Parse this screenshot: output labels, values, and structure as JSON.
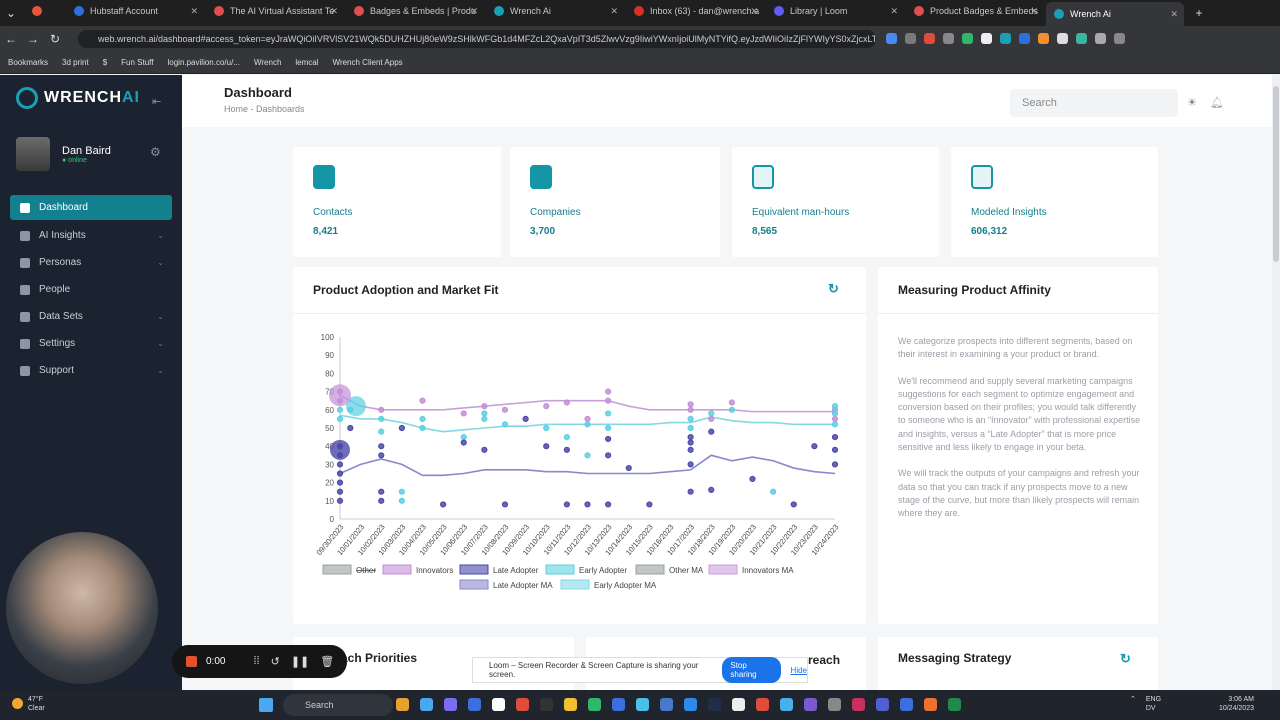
{
  "browser": {
    "tabs": [
      {
        "label": "",
        "color": "#e8553d"
      },
      {
        "label": "Hubstaff Account",
        "color": "#2f6fdd"
      },
      {
        "label": "The AI Virtual Assistant Te",
        "color": "#e14e4e"
      },
      {
        "label": "Badges & Embeds | Produ",
        "color": "#e14e4e"
      },
      {
        "label": "Wrench Ai",
        "color": "#1aa0b4"
      },
      {
        "label": "Inbox (63) - dan@wrench.a",
        "color": "#d93025"
      },
      {
        "label": "Library | Loom",
        "color": "#625df5"
      },
      {
        "label": "Product Badges & Embeds",
        "color": "#e14e4e"
      },
      {
        "label": "Wrench Ai",
        "color": "#1aa0b4"
      }
    ],
    "url": "web.wrench.ai/dashboard#access_token=eyJraWQiOiIVRVlSV21WQk5DUHZHUj80eW9zSHlkWFGb1d4MFZcL2QxaVpIT3d5ZlwvVzg9IiwiYWxnIjoiUlMyNTYifQ.eyJzdWIiOiIzZjFlYWIyYS0xZjcxLT",
    "bookmarks": [
      "Bookmarks",
      "3d print",
      "$",
      "Fun Stuff",
      "login.pavilion.co/u/...",
      "Wrench",
      "lemcal",
      "Wrench Client Apps"
    ],
    "ext_colors": [
      "#4a8af4",
      "#7a7a7a",
      "#e04b3c",
      "#888888",
      "#2fb86b",
      "#eeeeee",
      "#1aa0b4",
      "#2f6fdd",
      "#f09030",
      "#dddddd",
      "#3cb4a0",
      "#aaaaaa",
      "#888888"
    ]
  },
  "app": {
    "logo_main": "WRENCH",
    "logo_ai": "AI",
    "user": {
      "name": "Dan Baird",
      "status": "● online"
    },
    "menu": [
      {
        "label": "Dashboard"
      },
      {
        "label": "AI Insights"
      },
      {
        "label": "Personas"
      },
      {
        "label": "People"
      },
      {
        "label": "Data Sets"
      },
      {
        "label": "Settings"
      },
      {
        "label": "Support"
      }
    ],
    "page_title": "Dashboard",
    "breadcrumb": "Home  -  Dashboards",
    "search_placeholder": "Search",
    "accent": "#1596a6"
  },
  "stats": [
    {
      "label": "Contacts",
      "value": "8,421",
      "icon": "person-icon"
    },
    {
      "label": "Companies",
      "value": "3,700",
      "icon": "home-icon"
    },
    {
      "label": "Equivalent man-hours",
      "value": "8,565",
      "icon": "clock-icon"
    },
    {
      "label": "Modeled Insights",
      "value": "606,312",
      "icon": "trend-icon"
    }
  ],
  "chart_card_title": "Product Adoption and Market Fit",
  "chart_data": {
    "type": "scatter",
    "categories": [
      "09/30/2023",
      "10/01/2023",
      "10/02/2023",
      "10/03/2023",
      "10/04/2023",
      "10/05/2023",
      "10/06/2023",
      "10/07/2023",
      "10/08/2023",
      "10/09/2023",
      "10/10/2023",
      "10/11/2023",
      "10/12/2023",
      "10/13/2023",
      "10/14/2023",
      "10/15/2023",
      "10/16/2023",
      "10/17/2023",
      "10/18/2023",
      "10/19/2023",
      "10/20/2023",
      "10/21/2023",
      "10/22/2023",
      "10/23/2023",
      "10/24/2023"
    ],
    "ylim": [
      0,
      100
    ],
    "yticks": [
      0,
      10,
      20,
      30,
      40,
      50,
      60,
      70,
      80,
      90,
      100
    ],
    "legend": [
      {
        "name": "Other",
        "color": "#9aa09c",
        "struck": true
      },
      {
        "name": "Innovators",
        "color": "#c38ed8"
      },
      {
        "name": "Late Adopter",
        "color": "#4a48a8"
      },
      {
        "name": "Early Adopter",
        "color": "#5ad0e0"
      },
      {
        "name": "Other MA",
        "color": "#9aa09c"
      },
      {
        "name": "Innovators MA",
        "color": "#c9a0dc"
      },
      {
        "name": "Late Adopter MA",
        "color": "#8a88cc"
      },
      {
        "name": "Early Adopter MA",
        "color": "#84d8e6"
      }
    ],
    "series": [
      {
        "name": "Innovators MA",
        "color": "#c9a0dc",
        "values": [
          68,
          62,
          60,
          60,
          60,
          60,
          61,
          62,
          63,
          64,
          65,
          65,
          65,
          65,
          62,
          60,
          60,
          60,
          60,
          60,
          59,
          59,
          59,
          59,
          59
        ]
      },
      {
        "name": "Early Adopter MA",
        "color": "#84d8e6",
        "values": [
          57,
          55,
          55,
          53,
          50,
          48,
          49,
          50,
          51,
          51,
          52,
          52,
          52,
          52,
          52,
          52,
          53,
          53,
          56,
          54,
          53,
          53,
          52,
          52,
          52
        ]
      },
      {
        "name": "Late Adopter MA",
        "color": "#8a88cc",
        "values": [
          25,
          30,
          33,
          30,
          24,
          24,
          25,
          27,
          27,
          27,
          26,
          26,
          25,
          25,
          25,
          25,
          26,
          27,
          35,
          32,
          34,
          32,
          28,
          26,
          25
        ]
      }
    ],
    "points": {
      "Innovators": [
        [
          0,
          70
        ],
        [
          0,
          65
        ],
        [
          2,
          60
        ],
        [
          4,
          65
        ],
        [
          6,
          58
        ],
        [
          7,
          62
        ],
        [
          8,
          60
        ],
        [
          10,
          62
        ],
        [
          11,
          64
        ],
        [
          12,
          55
        ],
        [
          13,
          65
        ],
        [
          13,
          70
        ],
        [
          17,
          63
        ],
        [
          17,
          60
        ],
        [
          18,
          55
        ],
        [
          19,
          64
        ],
        [
          24,
          60
        ],
        [
          24,
          55
        ]
      ],
      "Early Adopter": [
        [
          0,
          60
        ],
        [
          0,
          55
        ],
        [
          0.5,
          60
        ],
        [
          2,
          55
        ],
        [
          2,
          48
        ],
        [
          3,
          15
        ],
        [
          3,
          10
        ],
        [
          4,
          55
        ],
        [
          4,
          50
        ],
        [
          6,
          45
        ],
        [
          7,
          58
        ],
        [
          7,
          55
        ],
        [
          8,
          52
        ],
        [
          10,
          50
        ],
        [
          11,
          45
        ],
        [
          12,
          52
        ],
        [
          12,
          35
        ],
        [
          13,
          58
        ],
        [
          13,
          50
        ],
        [
          17,
          55
        ],
        [
          17,
          50
        ],
        [
          18,
          58
        ],
        [
          19,
          60
        ],
        [
          21,
          15
        ],
        [
          24,
          62
        ],
        [
          24,
          58
        ],
        [
          24,
          52
        ]
      ],
      "Late Adopter": [
        [
          0,
          40
        ],
        [
          0,
          35
        ],
        [
          0,
          30
        ],
        [
          0,
          25
        ],
        [
          0,
          20
        ],
        [
          0,
          15
        ],
        [
          0,
          10
        ],
        [
          0.5,
          50
        ],
        [
          2,
          40
        ],
        [
          2,
          35
        ],
        [
          2,
          15
        ],
        [
          2,
          10
        ],
        [
          3,
          50
        ],
        [
          5,
          8
        ],
        [
          6,
          42
        ],
        [
          7,
          38
        ],
        [
          8,
          8
        ],
        [
          9,
          55
        ],
        [
          10,
          40
        ],
        [
          11,
          38
        ],
        [
          11,
          8
        ],
        [
          12,
          8
        ],
        [
          13,
          35
        ],
        [
          13,
          44
        ],
        [
          13,
          8
        ],
        [
          14,
          28
        ],
        [
          15,
          8
        ],
        [
          17,
          45
        ],
        [
          17,
          42
        ],
        [
          17,
          38
        ],
        [
          17,
          30
        ],
        [
          17,
          15
        ],
        [
          18,
          48
        ],
        [
          18,
          16
        ],
        [
          20,
          22
        ],
        [
          22,
          8
        ],
        [
          23,
          40
        ],
        [
          24,
          45
        ],
        [
          24,
          38
        ],
        [
          24,
          30
        ]
      ]
    }
  },
  "affinity": {
    "title": "Measuring Product Affinity",
    "paragraphs": [
      "We categorize prospects into different segments, based on their interest in examining a your product or brand.",
      "We'll recommend and supply several marketing campaigns suggestions for each segment to optimize engagement and conversion based on their profiles; you would talk differently to someone who is an “Innovator” with professional expertise and insights, versus a “Late Adopter” that is more price sensitive and less likely to engage in your beta.",
      "We will track the outputs of your campaigns and refresh your data so that you can track if any prospects move to a new stage of the curve, but more than likely prospects will remain where they are."
    ]
  },
  "bottom_cards": [
    {
      "title": "ach Priorities"
    },
    {
      "title": "reach"
    },
    {
      "title": "Messaging Strategy"
    }
  ],
  "loom": {
    "timer": "0:00",
    "share_text": "Loom – Screen Recorder & Screen Capture is sharing your screen.",
    "stop_label": "Stop sharing",
    "hide_label": "Hide"
  },
  "taskbar": {
    "temp": "47°F",
    "condition": "Clear",
    "search": "Search",
    "lang1": "ENG",
    "lang2": "DV",
    "time": "3:06 AM",
    "date": "10/24/2023",
    "app_colors": [
      "#e8a030",
      "#4aa8f0",
      "#7a6ef0",
      "#3b6fe0",
      "#ffffff",
      "#e04b3c",
      "#333333",
      "#f0c030",
      "#2fb86b",
      "#3b6fe0",
      "#48c0e8",
      "#4a78c8",
      "#2d8ae8",
      "#1f2f4a",
      "#eeeeee",
      "#e04b3c",
      "#48b0e8",
      "#7a5ad0",
      "#888888",
      "#c83060",
      "#5060d0",
      "#3b6fe0",
      "#f07030",
      "#1f8a4a"
    ]
  }
}
